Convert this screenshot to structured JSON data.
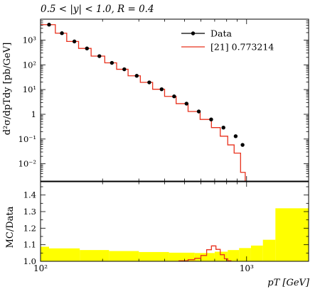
{
  "chart_data": [
    {
      "type": "line",
      "panel": "main",
      "title": "0.5 < |y| < 1.0, R = 0.4",
      "ylabel": "d²σ/dpTdy [pb/GeV]",
      "xscale": "log",
      "yscale": "log",
      "xlim": [
        100,
        2000
      ],
      "ylim": [
        0.002,
        7000
      ],
      "yticks": [
        {
          "v": 0.01,
          "label": "10⁻²"
        },
        {
          "v": 0.1,
          "label": "10⁻¹"
        },
        {
          "v": 1,
          "label": "1"
        },
        {
          "v": 10,
          "label": "10¹"
        },
        {
          "v": 100,
          "label": "10²"
        },
        {
          "v": 1000,
          "label": "10³"
        }
      ],
      "legend": {
        "position": "top-right"
      },
      "series": [
        {
          "name": "Data",
          "style": "points",
          "color": "#000000",
          "x": [
            110,
            127,
            146,
            168,
            193,
            222,
            255,
            293,
            337,
            387,
            445,
            511,
            586,
            673,
            772,
            885,
            956
          ],
          "y": [
            4200,
            1900,
            880,
            460,
            225,
            120,
            66,
            36,
            19.5,
            10.3,
            5.3,
            2.7,
            1.3,
            0.62,
            0.29,
            0.13,
            0.058
          ]
        },
        {
          "name": "[21] 0.773214",
          "style": "step",
          "color": "#e8301c",
          "edges": [
            100,
            118,
            134,
            153,
            176,
            205,
            234,
            266,
            305,
            350,
            400,
            455,
            520,
            595,
            675,
            745,
            810,
            870,
            935,
            985
          ],
          "values": [
            4200,
            1900,
            880,
            460,
            225,
            120,
            66,
            36,
            19.5,
            10.3,
            5.3,
            2.7,
            1.3,
            0.62,
            0.29,
            0.13,
            0.058,
            0.027,
            0.0045
          ]
        }
      ]
    },
    {
      "type": "area",
      "panel": "ratio",
      "ylabel": "MC/Data",
      "xlabel": "pT [GeV]",
      "xscale": "log",
      "xlim": [
        100,
        2000
      ],
      "ylim": [
        1.0,
        1.48
      ],
      "yticks": [
        1.0,
        1.1,
        1.2,
        1.3,
        1.4
      ],
      "xticks": [
        {
          "v": 100,
          "label": "10²"
        },
        {
          "v": 1000,
          "label": "10³"
        }
      ],
      "series": [
        {
          "name": "uncertainty band",
          "style": "band",
          "color": "#ffff00",
          "edges": [
            100,
            110,
            155,
            215,
            300,
            420,
            560,
            700,
            810,
            920,
            1050,
            1200,
            1380,
            2000
          ],
          "values": [
            1.088,
            1.078,
            1.068,
            1.062,
            1.056,
            1.052,
            1.05,
            1.058,
            1.068,
            1.08,
            1.095,
            1.13,
            1.32
          ]
        },
        {
          "name": "[21] 0.773214 ratio",
          "style": "step",
          "color": "#e8301c",
          "edges": [
            470,
            520,
            560,
            600,
            640,
            675,
            710,
            745,
            780,
            810,
            840
          ],
          "values": [
            1.003,
            1.01,
            1.018,
            1.035,
            1.07,
            1.093,
            1.072,
            1.04,
            1.015,
            1.003
          ]
        }
      ]
    }
  ]
}
